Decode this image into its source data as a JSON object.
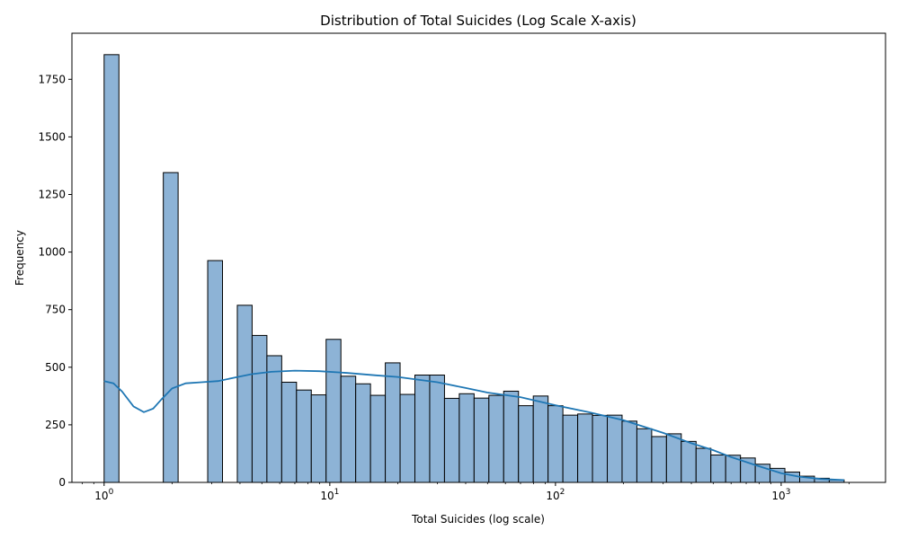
{
  "chart_data": {
    "type": "bar",
    "title": "Distribution of Total Suicides (Log Scale X-axis)",
    "xlabel": "Total Suicides (log scale)",
    "ylabel": "Frequency",
    "x_scale": "log",
    "xlim": [
      0.72,
      2900
    ],
    "ylim": [
      0,
      1950
    ],
    "grid": false,
    "y_ticks": [
      {
        "value": 0,
        "label": "0"
      },
      {
        "value": 250,
        "label": "250"
      },
      {
        "value": 500,
        "label": "500"
      },
      {
        "value": 750,
        "label": "750"
      },
      {
        "value": 1000,
        "label": "1000"
      },
      {
        "value": 1250,
        "label": "1250"
      },
      {
        "value": 1500,
        "label": "1500"
      },
      {
        "value": 1750,
        "label": "1750"
      }
    ],
    "x_ticks": [
      {
        "value": 1,
        "base": "10",
        "exp": "0"
      },
      {
        "value": 10,
        "base": "10",
        "exp": "1"
      },
      {
        "value": 100,
        "base": "10",
        "exp": "2"
      },
      {
        "value": 1000,
        "base": "10",
        "exp": "3"
      }
    ],
    "bins": {
      "min": 1,
      "max": 1900,
      "count": 50
    },
    "bar_color": "#8db3d6",
    "bar_edge_color": "#000000",
    "kde_color": "#1f77b4",
    "values": [
      1857,
      0,
      0,
      0,
      1345,
      0,
      0,
      963,
      0,
      769,
      638,
      550,
      435,
      401,
      380,
      621,
      461,
      428,
      378,
      519,
      382,
      466,
      466,
      365,
      385,
      366,
      378,
      396,
      333,
      375,
      333,
      292,
      297,
      291,
      292,
      266,
      233,
      199,
      211,
      178,
      148,
      119,
      118,
      106,
      79,
      61,
      45,
      27,
      18,
      11
    ],
    "kde": {
      "x": [
        1.0,
        1.1,
        1.2,
        1.35,
        1.5,
        1.65,
        1.8,
        2.0,
        2.3,
        2.7,
        3.2,
        3.8,
        4.5,
        5.5,
        7,
        9,
        12,
        16,
        20,
        25,
        30,
        40,
        50,
        70,
        100,
        140,
        200,
        300,
        400,
        500,
        600,
        800,
        1000,
        1200,
        1500,
        1900
      ],
      "y": [
        440,
        430,
        395,
        330,
        305,
        320,
        362,
        408,
        430,
        435,
        440,
        455,
        470,
        480,
        485,
        483,
        475,
        465,
        458,
        445,
        435,
        410,
        390,
        370,
        335,
        305,
        270,
        215,
        170,
        140,
        110,
        70,
        40,
        25,
        15,
        10
      ]
    }
  }
}
